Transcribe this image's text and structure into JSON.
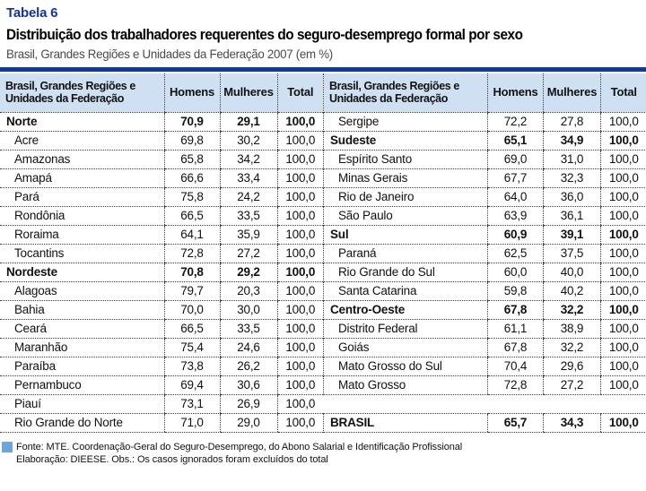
{
  "header": {
    "table_label": "Tabela 6",
    "title": "Distribuição dos trabalhadores requerentes do seguro-desemprego formal por sexo",
    "subtitle": "Brasil, Grandes Regiões e Unidades da Federação 2007 (em %)"
  },
  "colors": {
    "accent_navy": "#0E3A99",
    "table_label_blue": "#1433A0",
    "header_bg": "#CFE0F2",
    "source_square_blue": "#6EA5D8"
  },
  "table": {
    "header": {
      "region_line1": "Brasil, Grandes Regiões e",
      "region_line2": "Unidades da Federação",
      "homens": "Homens",
      "mulheres": "Mulheres",
      "total": "Total"
    },
    "left_rows": [
      {
        "label": "Norte",
        "bold": true,
        "indent": false,
        "homens": "70,9",
        "mulheres": "29,1",
        "total": "100,0"
      },
      {
        "label": "Acre",
        "indent": true,
        "homens": "69,8",
        "mulheres": "30,2",
        "total": "100,0"
      },
      {
        "label": "Amazonas",
        "indent": true,
        "homens": "65,8",
        "mulheres": "34,2",
        "total": "100,0"
      },
      {
        "label": "Amapá",
        "indent": true,
        "homens": "66,6",
        "mulheres": "33,4",
        "total": "100,0"
      },
      {
        "label": "Pará",
        "indent": true,
        "homens": "75,8",
        "mulheres": "24,2",
        "total": "100,0"
      },
      {
        "label": "Rondônia",
        "indent": true,
        "homens": "66,5",
        "mulheres": "33,5",
        "total": "100,0"
      },
      {
        "label": "Roraima",
        "indent": true,
        "homens": "64,1",
        "mulheres": "35,9",
        "total": "100,0"
      },
      {
        "label": "Tocantins",
        "indent": true,
        "homens": "72,8",
        "mulheres": "27,2",
        "total": "100,0"
      },
      {
        "label": "Nordeste",
        "bold": true,
        "indent": false,
        "homens": "70,8",
        "mulheres": "29,2",
        "total": "100,0"
      },
      {
        "label": "Alagoas",
        "indent": true,
        "homens": "79,7",
        "mulheres": "20,3",
        "total": "100,0"
      },
      {
        "label": "Bahia",
        "indent": true,
        "homens": "70,0",
        "mulheres": "30,0",
        "total": "100,0"
      },
      {
        "label": "Ceará",
        "indent": true,
        "homens": "66,5",
        "mulheres": "33,5",
        "total": "100,0"
      },
      {
        "label": "Maranhão",
        "indent": true,
        "homens": "75,4",
        "mulheres": "24,6",
        "total": "100,0"
      },
      {
        "label": "Paraíba",
        "indent": true,
        "homens": "73,8",
        "mulheres": "26,2",
        "total": "100,0"
      },
      {
        "label": "Pernambuco",
        "indent": true,
        "homens": "69,4",
        "mulheres": "30,6",
        "total": "100,0"
      },
      {
        "label": "Piauí",
        "indent": true,
        "homens": "73,1",
        "mulheres": "26,9",
        "total": "100,0"
      },
      {
        "label": "Rio Grande do Norte",
        "indent": true,
        "homens": "71,0",
        "mulheres": "29,0",
        "total": "100,0"
      }
    ],
    "right_rows": [
      {
        "label": "Sergipe",
        "indent": true,
        "homens": "72,2",
        "mulheres": "27,8",
        "total": "100,0"
      },
      {
        "label": "Sudeste",
        "bold": true,
        "indent": false,
        "homens": "65,1",
        "mulheres": "34,9",
        "total": "100,0"
      },
      {
        "label": "Espírito Santo",
        "indent": true,
        "homens": "69,0",
        "mulheres": "31,0",
        "total": "100,0"
      },
      {
        "label": "Minas Gerais",
        "indent": true,
        "homens": "67,7",
        "mulheres": "32,3",
        "total": "100,0"
      },
      {
        "label": "Rio de Janeiro",
        "indent": true,
        "homens": "64,0",
        "mulheres": "36,0",
        "total": "100,0"
      },
      {
        "label": "São Paulo",
        "indent": true,
        "homens": "63,9",
        "mulheres": "36,1",
        "total": "100,0"
      },
      {
        "label": "Sul",
        "bold": true,
        "indent": false,
        "homens": "60,9",
        "mulheres": "39,1",
        "total": "100,0"
      },
      {
        "label": "Paraná",
        "indent": true,
        "homens": "62,5",
        "mulheres": "37,5",
        "total": "100,0"
      },
      {
        "label": "Rio Grande do Sul",
        "indent": true,
        "homens": "60,0",
        "mulheres": "40,0",
        "total": "100,0"
      },
      {
        "label": "Santa Catarina",
        "indent": true,
        "homens": "59,8",
        "mulheres": "40,2",
        "total": "100,0"
      },
      {
        "label": "Centro-Oeste",
        "bold": true,
        "indent": false,
        "homens": "67,8",
        "mulheres": "32,2",
        "total": "100,0"
      },
      {
        "label": "Distrito Federal",
        "indent": true,
        "homens": "61,1",
        "mulheres": "38,9",
        "total": "100,0"
      },
      {
        "label": "Goiás",
        "indent": true,
        "homens": "67,8",
        "mulheres": "32,2",
        "total": "100,0"
      },
      {
        "label": "Mato Grosso do Sul",
        "indent": true,
        "homens": "70,4",
        "mulheres": "29,6",
        "total": "100,0"
      },
      {
        "label": "Mato Grosso",
        "indent": true,
        "homens": "72,8",
        "mulheres": "27,2",
        "total": "100,0"
      },
      {
        "label": "",
        "empty": true,
        "homens": "",
        "mulheres": "",
        "total": ""
      },
      {
        "label": "BRASIL",
        "bold": true,
        "indent": false,
        "homens": "65,7",
        "mulheres": "34,3",
        "total": "100,0"
      }
    ]
  },
  "footer": {
    "line1": "Fonte: MTE. Coordenação-Geral do Seguro-Desemprego, do Abono Salarial e Identificação Profissional",
    "line2": "Elaboração: DIEESE. Obs.: Os casos ignorados foram excluídos do total"
  }
}
